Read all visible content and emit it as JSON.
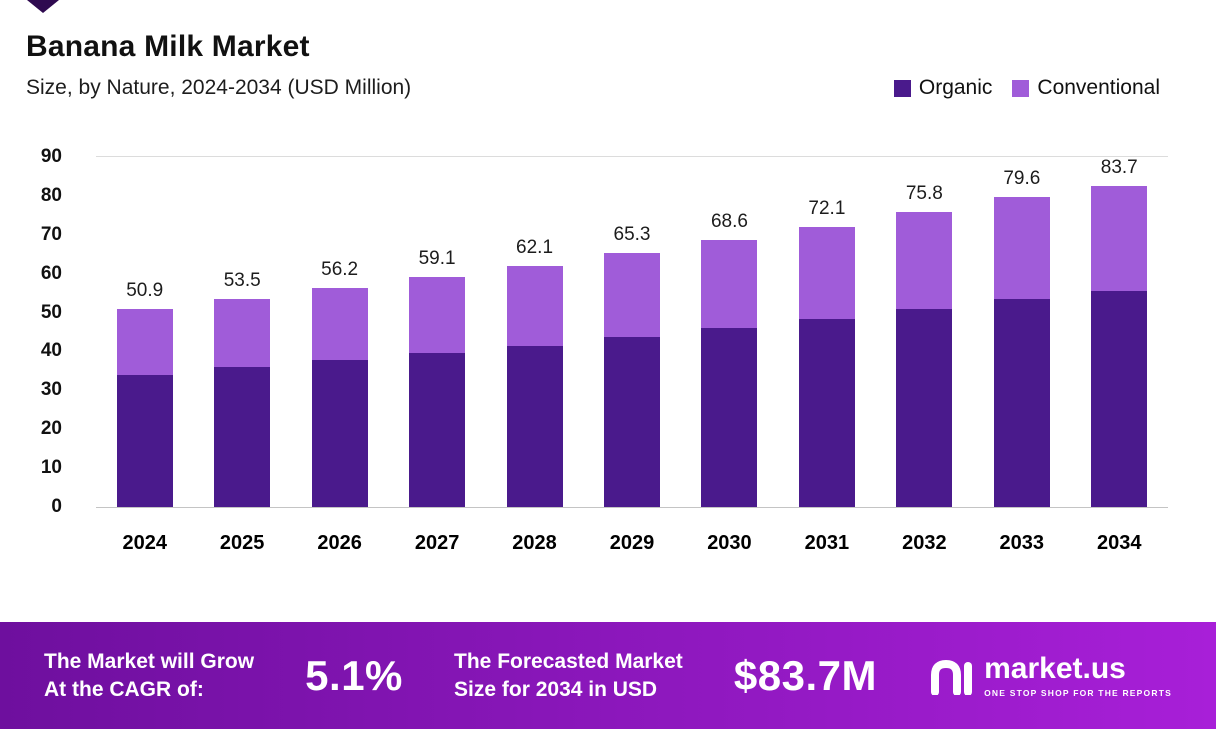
{
  "header": {
    "title": "Banana Milk Market",
    "subtitle": "Size, by Nature, 2024-2034 (USD Million)"
  },
  "legend": [
    {
      "label": "Organic",
      "color": "#4a1a8c"
    },
    {
      "label": "Conventional",
      "color": "#a05cd9"
    }
  ],
  "chart_data": {
    "type": "bar",
    "stacked": true,
    "title": "Banana Milk Market",
    "subtitle": "Size, by Nature, 2024-2034 (USD Million)",
    "categories": [
      "2024",
      "2025",
      "2026",
      "2027",
      "2028",
      "2029",
      "2030",
      "2031",
      "2032",
      "2033",
      "2034"
    ],
    "series": [
      {
        "name": "Organic",
        "color": "#4a1a8c",
        "values": [
          34.0,
          36.0,
          37.8,
          39.5,
          41.5,
          43.8,
          46.0,
          48.3,
          51.0,
          53.5,
          56.3
        ]
      },
      {
        "name": "Conventional",
        "color": "#a05cd9",
        "values": [
          16.9,
          17.5,
          18.4,
          19.6,
          20.6,
          21.5,
          22.6,
          23.8,
          24.8,
          26.1,
          27.4
        ]
      }
    ],
    "totals": [
      50.9,
      53.5,
      56.2,
      59.1,
      62.1,
      65.3,
      68.6,
      72.1,
      75.8,
      79.6,
      83.7
    ],
    "total_labels": [
      "50.9",
      "53.5",
      "56.2",
      "59.1",
      "62.1",
      "65.3",
      "68.6",
      "72.1",
      "75.8",
      "79.6",
      "83.7"
    ],
    "xlabel": "",
    "ylabel": "",
    "ylim": [
      0,
      90
    ],
    "yticks": [
      0,
      10,
      20,
      30,
      40,
      50,
      60,
      70,
      80,
      90
    ],
    "grid": false,
    "legend_position": "top-right"
  },
  "footer": {
    "growth_label_line1": "The Market will Grow",
    "growth_label_line2": "At the CAGR of:",
    "cagr_value": "5.1%",
    "forecast_label_line1": "The Forecasted Market",
    "forecast_label_line2": "Size for 2034 in USD",
    "forecast_value": "$83.7M",
    "logo_text": "market.us",
    "logo_tagline": "ONE STOP SHOP FOR THE REPORTS"
  },
  "colors": {
    "organic": "#4a1a8c",
    "conventional": "#a05cd9",
    "banner_gradient_start": "#6e0f9e",
    "banner_gradient_end": "#a81fd8"
  }
}
